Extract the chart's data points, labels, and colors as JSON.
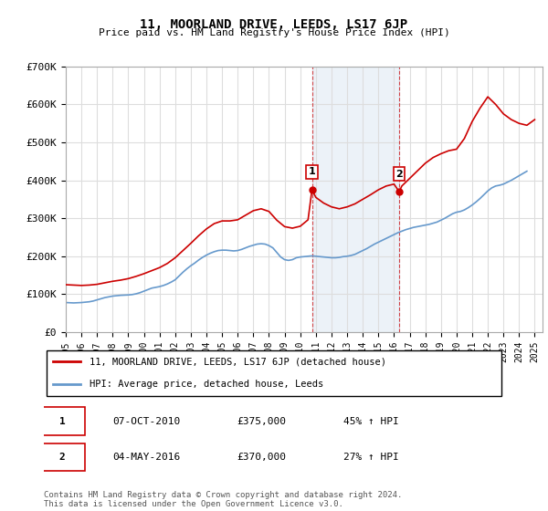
{
  "title": "11, MOORLAND DRIVE, LEEDS, LS17 6JP",
  "subtitle": "Price paid vs. HM Land Registry's House Price Index (HPI)",
  "footer": "Contains HM Land Registry data © Crown copyright and database right 2024.\nThis data is licensed under the Open Government Licence v3.0.",
  "legend_entry1": "11, MOORLAND DRIVE, LEEDS, LS17 6JP (detached house)",
  "legend_entry2": "HPI: Average price, detached house, Leeds",
  "transaction1_label": "1",
  "transaction1_date": "07-OCT-2010",
  "transaction1_price": "£375,000",
  "transaction1_hpi": "45% ↑ HPI",
  "transaction2_label": "2",
  "transaction2_date": "04-MAY-2016",
  "transaction2_price": "£370,000",
  "transaction2_hpi": "27% ↑ HPI",
  "ylim": [
    0,
    700000
  ],
  "yticks": [
    0,
    100000,
    200000,
    300000,
    400000,
    500000,
    600000,
    700000
  ],
  "ytick_labels": [
    "£0",
    "£100K",
    "£200K",
    "£300K",
    "£400K",
    "£500K",
    "£600K",
    "£700K"
  ],
  "xlim_start": 1995.0,
  "xlim_end": 2025.5,
  "red_color": "#cc0000",
  "blue_color": "#6699cc",
  "transaction_box_color": "#cc0000",
  "grid_color": "#dddddd",
  "background_color": "#ffffff",
  "transaction1_x": 2010.75,
  "transaction1_y": 375000,
  "transaction2_x": 2016.33,
  "transaction2_y": 370000,
  "hpi_years": [
    1995.0,
    1995.25,
    1995.5,
    1995.75,
    1996.0,
    1996.25,
    1996.5,
    1996.75,
    1997.0,
    1997.25,
    1997.5,
    1997.75,
    1998.0,
    1998.25,
    1998.5,
    1998.75,
    1999.0,
    1999.25,
    1999.5,
    1999.75,
    2000.0,
    2000.25,
    2000.5,
    2000.75,
    2001.0,
    2001.25,
    2001.5,
    2001.75,
    2002.0,
    2002.25,
    2002.5,
    2002.75,
    2003.0,
    2003.25,
    2003.5,
    2003.75,
    2004.0,
    2004.25,
    2004.5,
    2004.75,
    2005.0,
    2005.25,
    2005.5,
    2005.75,
    2006.0,
    2006.25,
    2006.5,
    2006.75,
    2007.0,
    2007.25,
    2007.5,
    2007.75,
    2008.0,
    2008.25,
    2008.5,
    2008.75,
    2009.0,
    2009.25,
    2009.5,
    2009.75,
    2010.0,
    2010.25,
    2010.5,
    2010.75,
    2011.0,
    2011.25,
    2011.5,
    2011.75,
    2012.0,
    2012.25,
    2012.5,
    2012.75,
    2013.0,
    2013.25,
    2013.5,
    2013.75,
    2014.0,
    2014.25,
    2014.5,
    2014.75,
    2015.0,
    2015.25,
    2015.5,
    2015.75,
    2016.0,
    2016.25,
    2016.5,
    2016.75,
    2017.0,
    2017.25,
    2017.5,
    2017.75,
    2018.0,
    2018.25,
    2018.5,
    2018.75,
    2019.0,
    2019.25,
    2019.5,
    2019.75,
    2020.0,
    2020.25,
    2020.5,
    2020.75,
    2021.0,
    2021.25,
    2021.5,
    2021.75,
    2022.0,
    2022.25,
    2022.5,
    2022.75,
    2023.0,
    2023.25,
    2023.5,
    2023.75,
    2024.0,
    2024.25,
    2024.5
  ],
  "hpi_values": [
    78000,
    77500,
    77000,
    77500,
    78000,
    79000,
    80000,
    82000,
    85000,
    88000,
    91000,
    93000,
    95000,
    96000,
    97000,
    97500,
    98000,
    99000,
    101000,
    104000,
    108000,
    112000,
    116000,
    118000,
    120000,
    123000,
    127000,
    132000,
    138000,
    148000,
    158000,
    167000,
    175000,
    182000,
    190000,
    197000,
    203000,
    208000,
    212000,
    215000,
    216000,
    216000,
    215000,
    214000,
    215000,
    218000,
    222000,
    226000,
    229000,
    232000,
    233000,
    232000,
    228000,
    222000,
    210000,
    198000,
    191000,
    189000,
    191000,
    196000,
    198000,
    199000,
    200000,
    201000,
    200000,
    199000,
    198000,
    197000,
    196000,
    196000,
    197000,
    199000,
    200000,
    202000,
    205000,
    210000,
    215000,
    220000,
    226000,
    232000,
    237000,
    242000,
    247000,
    252000,
    257000,
    262000,
    266000,
    270000,
    273000,
    276000,
    278000,
    280000,
    282000,
    284000,
    287000,
    290000,
    295000,
    300000,
    306000,
    312000,
    316000,
    318000,
    322000,
    328000,
    335000,
    343000,
    352000,
    362000,
    372000,
    380000,
    385000,
    387000,
    390000,
    395000,
    400000,
    406000,
    412000,
    418000,
    424000
  ],
  "price_years": [
    1995.0,
    1995.5,
    1996.0,
    1996.5,
    1997.0,
    1997.5,
    1998.0,
    1998.5,
    1999.0,
    1999.5,
    2000.0,
    2000.5,
    2001.0,
    2001.5,
    2002.0,
    2002.5,
    2003.0,
    2003.5,
    2004.0,
    2004.5,
    2005.0,
    2005.5,
    2006.0,
    2006.5,
    2007.0,
    2007.5,
    2008.0,
    2008.5,
    2009.0,
    2009.5,
    2010.0,
    2010.5,
    2010.75,
    2011.0,
    2011.5,
    2012.0,
    2012.5,
    2013.0,
    2013.5,
    2014.0,
    2014.5,
    2015.0,
    2015.5,
    2016.0,
    2016.33,
    2016.5,
    2017.0,
    2017.5,
    2018.0,
    2018.5,
    2019.0,
    2019.5,
    2020.0,
    2020.5,
    2021.0,
    2021.5,
    2022.0,
    2022.5,
    2023.0,
    2023.5,
    2024.0,
    2024.5,
    2025.0
  ],
  "price_values": [
    125000,
    124000,
    123000,
    124000,
    126000,
    130000,
    134000,
    137000,
    141000,
    147000,
    154000,
    162000,
    170000,
    181000,
    196000,
    215000,
    234000,
    254000,
    272000,
    286000,
    293000,
    293000,
    296000,
    308000,
    320000,
    325000,
    318000,
    295000,
    278000,
    274000,
    279000,
    296000,
    375000,
    355000,
    340000,
    330000,
    325000,
    330000,
    338000,
    350000,
    362000,
    375000,
    385000,
    390000,
    370000,
    385000,
    405000,
    425000,
    445000,
    460000,
    470000,
    478000,
    482000,
    510000,
    555000,
    590000,
    620000,
    600000,
    575000,
    560000,
    550000,
    545000,
    560000
  ]
}
